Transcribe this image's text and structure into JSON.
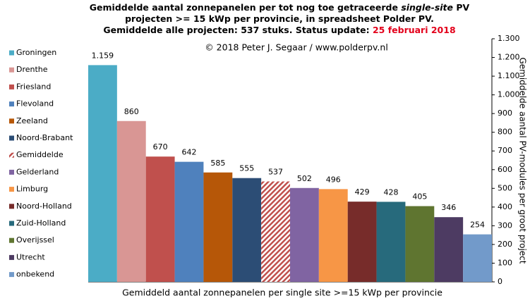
{
  "chart_data": {
    "type": "bar",
    "title_lines": [
      [
        "Gemiddelde aantal zonnepanelen per tot nog toe getraceerde",
        "single-site",
        "PV"
      ],
      [
        "projecten >= 15 kWp per provincie, in spreadsheet Polder PV."
      ],
      [
        "Gemiddelde alle projecten: 537 stuks. Status update:",
        "25 februari 2018"
      ]
    ],
    "annotation": "© 2018 Peter J. Segaar / www.polderpv.nl",
    "x_label": "Gemiddeld aantal zonnepanelen per single site >=15 kWp per provincie",
    "y_label": "Gemiddelde aantal PV-modules per groot project",
    "categories": [
      "Groningen",
      "Drenthe",
      "Friesland",
      "Flevoland",
      "Zeeland",
      "Noord-Brabant",
      "Gemiddelde",
      "Gelderland",
      "Limburg",
      "Noord-Holland",
      "Zuid-Holland",
      "Overijssel",
      "Utrecht",
      "onbekend"
    ],
    "values": [
      1159,
      860,
      670,
      642,
      585,
      555,
      537,
      502,
      496,
      429,
      428,
      405,
      346,
      254
    ],
    "value_labels": [
      "1.159",
      "860",
      "670",
      "642",
      "585",
      "555",
      "537",
      "502",
      "496",
      "429",
      "428",
      "405",
      "346",
      "254"
    ],
    "colors": [
      "#4bacc6",
      "#d99694",
      "#c0504d",
      "#4f81bd",
      "#b65708",
      "#2c4d75",
      "#c0504d",
      "#8064a2",
      "#f79646",
      "#772c2a",
      "#276a7c",
      "#5f7530",
      "#4d3b62",
      "#729aca"
    ],
    "hatched": [
      false,
      false,
      false,
      false,
      false,
      false,
      true,
      false,
      false,
      false,
      false,
      false,
      false,
      false
    ],
    "highlight_color": "#e3001b",
    "ylim": [
      0,
      1300
    ],
    "yticks": [
      0,
      100,
      200,
      300,
      400,
      500,
      600,
      700,
      800,
      900,
      {
        "value": 1000,
        "label": "1.000"
      },
      {
        "value": 1100,
        "label": "1.100"
      },
      {
        "value": 1200,
        "label": "1.200"
      },
      {
        "value": 1300,
        "label": "1.300"
      }
    ],
    "y_axis_side": "right",
    "grid": false,
    "legend": "left"
  }
}
